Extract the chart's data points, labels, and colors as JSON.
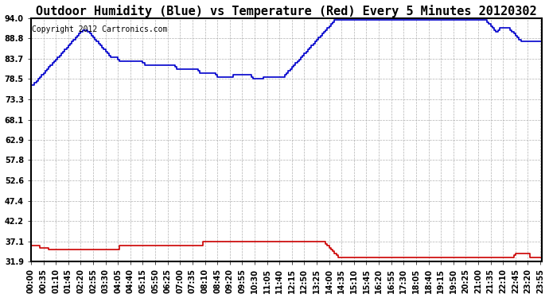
{
  "title": "Outdoor Humidity (Blue) vs Temperature (Red) Every 5 Minutes 20120302",
  "copyright_text": "Copyright 2012 Cartronics.com",
  "background_color": "#ffffff",
  "plot_bg_color": "#ffffff",
  "grid_color": "#aaaaaa",
  "blue_line_color": "#0000cc",
  "red_line_color": "#cc0000",
  "yticks": [
    31.9,
    37.1,
    42.2,
    47.4,
    52.6,
    57.8,
    62.9,
    68.1,
    73.3,
    78.5,
    83.7,
    88.8,
    94.0
  ],
  "ymin": 31.9,
  "ymax": 94.0,
  "title_fontsize": 11,
  "axis_fontsize": 7,
  "copyright_fontsize": 7,
  "humidity_data": [
    77.0,
    77.0,
    77.5,
    78.0,
    78.5,
    79.0,
    79.5,
    80.0,
    80.5,
    81.0,
    81.5,
    82.0,
    82.5,
    83.0,
    83.5,
    84.0,
    84.5,
    85.0,
    85.5,
    86.0,
    86.5,
    87.0,
    87.5,
    88.0,
    88.5,
    89.0,
    89.5,
    90.0,
    90.5,
    91.0,
    91.0,
    91.0,
    90.5,
    90.0,
    89.5,
    89.0,
    88.5,
    88.0,
    87.5,
    87.0,
    86.5,
    86.0,
    85.5,
    85.0,
    84.5,
    84.0,
    84.0,
    84.0,
    84.0,
    83.5,
    83.0,
    83.0,
    83.0,
    83.0,
    83.0,
    83.0,
    83.0,
    83.0,
    83.0,
    83.0,
    83.0,
    83.0,
    83.0,
    82.5,
    82.0,
    82.0,
    82.0,
    82.0,
    82.0,
    82.0,
    82.0,
    82.0,
    82.0,
    82.0,
    82.0,
    82.0,
    82.0,
    82.0,
    82.0,
    82.0,
    82.0,
    81.5,
    81.0,
    81.0,
    81.0,
    81.0,
    81.0,
    81.0,
    81.0,
    81.0,
    81.0,
    81.0,
    81.0,
    81.0,
    80.5,
    80.0,
    80.0,
    80.0,
    80.0,
    80.0,
    80.0,
    80.0,
    80.0,
    80.0,
    79.5,
    79.0,
    79.0,
    79.0,
    79.0,
    79.0,
    79.0,
    79.0,
    79.0,
    79.0,
    79.5,
    79.5,
    79.5,
    79.5,
    79.5,
    79.5,
    79.5,
    79.5,
    79.5,
    79.5,
    79.0,
    78.5,
    78.5,
    78.5,
    78.5,
    78.5,
    78.5,
    79.0,
    79.0,
    79.0,
    79.0,
    79.0,
    79.0,
    79.0,
    79.0,
    79.0,
    79.0,
    79.0,
    79.0,
    79.5,
    80.0,
    80.5,
    81.0,
    81.5,
    82.0,
    82.5,
    83.0,
    83.5,
    84.0,
    84.5,
    85.0,
    85.5,
    86.0,
    86.5,
    87.0,
    87.5,
    88.0,
    88.5,
    89.0,
    89.5,
    90.0,
    90.5,
    91.0,
    91.5,
    92.0,
    92.5,
    93.0,
    93.5,
    93.5,
    93.5,
    93.5,
    93.5,
    93.5,
    93.5,
    93.5,
    93.5,
    93.5,
    93.5,
    93.5,
    93.5,
    93.5,
    93.5,
    93.5,
    93.5,
    93.5,
    93.5,
    93.5,
    93.5,
    93.5,
    93.5,
    93.5,
    93.5,
    93.5,
    93.5,
    93.5,
    93.5,
    93.5,
    93.5,
    93.5,
    93.5,
    93.5,
    93.5,
    93.5,
    93.5,
    93.5,
    93.5,
    93.5,
    93.5,
    93.5,
    93.5,
    93.5,
    93.5,
    93.5,
    93.5,
    93.5,
    93.5,
    93.5,
    93.5,
    93.5,
    93.5,
    93.5,
    93.5,
    93.5,
    93.5,
    93.5,
    93.5,
    93.5,
    93.5,
    93.5,
    93.5,
    93.5,
    93.5,
    93.5,
    93.5,
    93.5,
    93.5,
    93.5,
    93.5,
    93.5,
    93.5,
    93.5,
    93.5,
    93.5,
    93.5,
    93.5,
    93.5,
    93.5,
    93.5,
    93.5,
    93.5,
    93.5,
    93.5,
    93.5,
    93.0,
    92.5,
    92.0,
    91.5,
    91.0,
    90.5,
    91.0,
    91.5,
    91.5,
    91.5,
    91.5,
    91.5,
    91.5,
    91.0,
    90.5,
    90.0,
    89.5,
    89.0,
    88.5,
    88.0,
    88.0,
    88.0,
    88.0,
    88.0,
    88.0,
    88.0,
    88.0,
    88.0,
    88.0,
    88.0,
    88.0,
    91.0
  ],
  "temperature_data": [
    36.0,
    36.0,
    36.0,
    36.0,
    36.0,
    35.5,
    35.5,
    35.5,
    35.5,
    35.5,
    35.0,
    35.0,
    35.0,
    35.0,
    35.0,
    35.0,
    35.0,
    35.0,
    35.0,
    35.0,
    35.0,
    35.0,
    35.0,
    35.0,
    35.0,
    35.0,
    35.0,
    35.0,
    35.0,
    35.0,
    35.0,
    35.0,
    35.0,
    35.0,
    35.0,
    35.0,
    35.0,
    35.0,
    35.0,
    35.0,
    35.0,
    35.0,
    35.0,
    35.0,
    35.0,
    35.0,
    35.0,
    35.0,
    35.0,
    35.0,
    36.0,
    36.0,
    36.0,
    36.0,
    36.0,
    36.0,
    36.0,
    36.0,
    36.0,
    36.0,
    36.0,
    36.0,
    36.0,
    36.0,
    36.0,
    36.0,
    36.0,
    36.0,
    36.0,
    36.0,
    36.0,
    36.0,
    36.0,
    36.0,
    36.0,
    36.0,
    36.0,
    36.0,
    36.0,
    36.0,
    36.0,
    36.0,
    36.0,
    36.0,
    36.0,
    36.0,
    36.0,
    36.0,
    36.0,
    36.0,
    36.0,
    36.0,
    36.0,
    36.0,
    36.0,
    36.0,
    36.0,
    37.0,
    37.0,
    37.0,
    37.0,
    37.0,
    37.0,
    37.0,
    37.0,
    37.0,
    37.0,
    37.0,
    37.0,
    37.0,
    37.0,
    37.0,
    37.0,
    37.0,
    37.0,
    37.0,
    37.0,
    37.0,
    37.0,
    37.0,
    37.0,
    37.0,
    37.0,
    37.0,
    37.0,
    37.0,
    37.0,
    37.0,
    37.0,
    37.0,
    37.0,
    37.0,
    37.0,
    37.0,
    37.0,
    37.0,
    37.0,
    37.0,
    37.0,
    37.0,
    37.0,
    37.0,
    37.0,
    37.0,
    37.0,
    37.0,
    37.0,
    37.0,
    37.0,
    37.0,
    37.0,
    37.0,
    37.0,
    37.0,
    37.0,
    37.0,
    37.0,
    37.0,
    37.0,
    37.0,
    37.0,
    37.0,
    37.0,
    37.0,
    37.0,
    37.0,
    36.5,
    36.0,
    35.5,
    35.0,
    34.5,
    34.0,
    33.5,
    33.0,
    33.0,
    33.0,
    33.0,
    33.0,
    33.0,
    33.0,
    33.0,
    33.0,
    33.0,
    33.0,
    33.0,
    33.0,
    33.0,
    33.0,
    33.0,
    33.0,
    33.0,
    33.0,
    33.0,
    33.0,
    33.0,
    33.0,
    33.0,
    33.0,
    33.0,
    33.0,
    33.0,
    33.0,
    33.0,
    33.0,
    33.0,
    33.0,
    33.0,
    33.0,
    33.0,
    33.0,
    33.0,
    33.0,
    33.0,
    33.0,
    33.0,
    33.0,
    33.0,
    33.0,
    33.0,
    33.0,
    33.0,
    33.0,
    33.0,
    33.0,
    33.0,
    33.0,
    33.0,
    33.0,
    33.0,
    33.0,
    33.0,
    33.0,
    33.0,
    33.0,
    33.0,
    33.0,
    33.0,
    33.0,
    33.0,
    33.0,
    33.0,
    33.0,
    33.0,
    33.0,
    33.0,
    33.0,
    33.0,
    33.0,
    33.0,
    33.0,
    33.0,
    33.0,
    33.0,
    33.0,
    33.0,
    33.0,
    33.0,
    33.0,
    33.0,
    33.0,
    33.0,
    33.0,
    33.0,
    33.0,
    33.0,
    33.0,
    33.0,
    33.0,
    33.0,
    33.0,
    33.0,
    33.0,
    33.5,
    34.0,
    34.0,
    34.0,
    34.0,
    34.0,
    34.0,
    34.0,
    34.0,
    33.0,
    33.0,
    33.0,
    33.0,
    33.0,
    33.0,
    33.0,
    33.0
  ],
  "xtick_step": 7,
  "figwidth": 6.9,
  "figheight": 3.75,
  "dpi": 100
}
